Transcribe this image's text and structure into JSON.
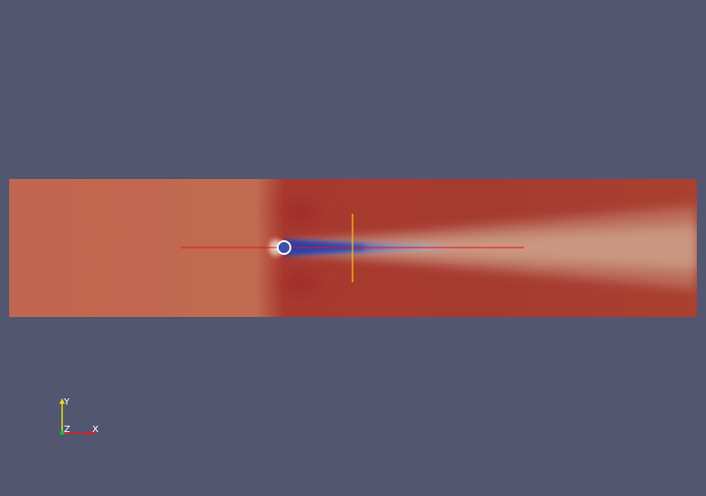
{
  "scene": {
    "background_color": "#525670",
    "field_colors": {
      "freestream": "#c0684f",
      "high": "#a8392e",
      "wake_light": "#c9957f",
      "low": "#3a4fa8",
      "stagnation": "#e9d6c8"
    },
    "cylinder_color": "#ffffff",
    "streamline_color": "#e8141e",
    "probe_line_color": "#f0d000"
  },
  "axes": {
    "y_label": "Y",
    "z_label": "Z",
    "x_label": "X",
    "y_color": "#e8e000",
    "x_color": "#e02020",
    "z_color": "#20b040"
  }
}
